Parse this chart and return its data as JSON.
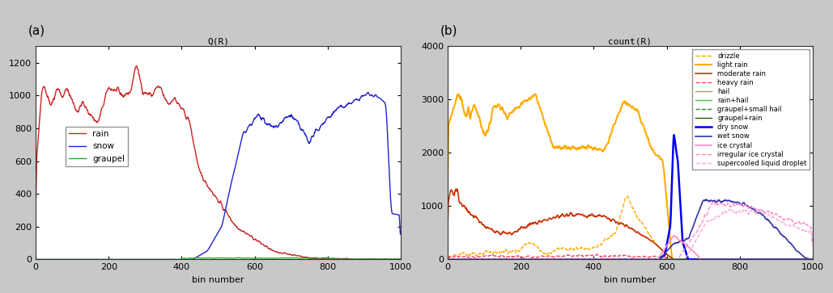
{
  "title_a": "Q(R)",
  "title_b": "count(R)",
  "xlabel": "bin number",
  "panel_a_label": "(a)",
  "panel_b_label": "(b)",
  "ylim_a": [
    0,
    1300
  ],
  "ylim_b": [
    0,
    4000
  ],
  "xlim": [
    0,
    1000
  ],
  "yticks_a": [
    0,
    200,
    400,
    600,
    800,
    1000,
    1200
  ],
  "yticks_b": [
    0,
    1000,
    2000,
    3000,
    4000
  ],
  "xticks": [
    0,
    200,
    400,
    600,
    800,
    1000
  ],
  "fig_bg": "#c8c8c8",
  "ax_bg": "#ffffff",
  "legend_a": [
    {
      "label": "rain",
      "color": "#cc2222",
      "lw": 1.0,
      "ls": "-"
    },
    {
      "label": "snow",
      "color": "#2222cc",
      "lw": 1.0,
      "ls": "-"
    },
    {
      "label": "graupel",
      "color": "#22aa22",
      "lw": 1.0,
      "ls": "-"
    }
  ],
  "legend_b": [
    {
      "label": "drizzle",
      "color": "#ffaa00",
      "lw": 1.0,
      "ls": "--"
    },
    {
      "label": "light rain",
      "color": "#ffaa00",
      "lw": 1.5,
      "ls": "-"
    },
    {
      "label": "moderate rain",
      "color": "#cc3300",
      "lw": 1.2,
      "ls": "-"
    },
    {
      "label": "heavy rain",
      "color": "#ff4466",
      "lw": 1.0,
      "ls": "--"
    },
    {
      "label": "hail",
      "color": "#bbaa00",
      "lw": 1.0,
      "ls": "-"
    },
    {
      "label": "rain+hail",
      "color": "#44cc44",
      "lw": 1.0,
      "ls": "-"
    },
    {
      "label": "graupel+small hail",
      "color": "#228833",
      "lw": 1.0,
      "ls": "--"
    },
    {
      "label": "graupel+rain",
      "color": "#225533",
      "lw": 1.0,
      "ls": "-"
    },
    {
      "label": "dry snow",
      "color": "#0000ee",
      "lw": 1.8,
      "ls": "-"
    },
    {
      "label": "wet snow",
      "color": "#3333aa",
      "lw": 1.2,
      "ls": "-"
    },
    {
      "label": "ice crystal",
      "color": "#ff88cc",
      "lw": 1.2,
      "ls": "-"
    },
    {
      "label": "irregular ice crystal",
      "color": "#ff88cc",
      "lw": 1.0,
      "ls": "--"
    },
    {
      "label": "supercooled liquid droplet",
      "color": "#ffaadd",
      "lw": 1.0,
      "ls": "--"
    }
  ]
}
